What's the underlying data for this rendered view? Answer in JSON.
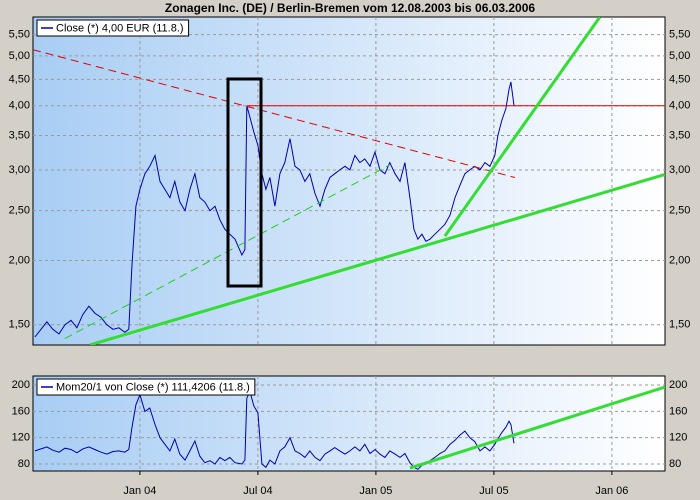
{
  "chart_data": [
    {
      "type": "line",
      "title": "Zonagen Inc. (DE) / Berlin-Bremen vom 12.08.2003 bis 06.03.2006",
      "x": [
        2003.555,
        2003.581,
        2003.606,
        2003.631,
        2003.657,
        2003.682,
        2003.708,
        2003.733,
        2003.758,
        2003.784,
        2003.809,
        2003.835,
        2003.86,
        2003.886,
        2003.911,
        2003.936,
        2003.953,
        2003.966,
        2003.983,
        2004.0,
        2004.021,
        2004.042,
        2004.064,
        2004.085,
        2004.106,
        2004.127,
        2004.148,
        2004.169,
        2004.191,
        2004.212,
        2004.233,
        2004.254,
        2004.275,
        2004.297,
        2004.318,
        2004.339,
        2004.36,
        2004.381,
        2004.403,
        2004.432,
        2004.445,
        2004.453,
        2004.466,
        2004.483,
        2004.5,
        2004.517,
        2004.534,
        2004.551,
        2004.572,
        2004.593,
        2004.614,
        2004.636,
        2004.657,
        2004.678,
        2004.699,
        2004.72,
        2004.742,
        2004.763,
        2004.784,
        2004.805,
        2004.826,
        2004.847,
        2004.869,
        2004.89,
        2004.911,
        2004.932,
        2004.953,
        2004.975,
        2004.996,
        2005.017,
        2005.038,
        2005.059,
        2005.081,
        2005.102,
        2005.123,
        2005.144,
        2005.161,
        2005.178,
        2005.195,
        2005.212,
        2005.229,
        2005.25,
        2005.271,
        2005.292,
        2005.314,
        2005.335,
        2005.356,
        2005.377,
        2005.398,
        2005.419,
        2005.441,
        2005.462,
        2005.483,
        2005.504,
        2005.517,
        2005.534,
        2005.551,
        2005.564,
        2005.572,
        2005.585
      ],
      "series": [
        {
          "name": "Close (*) 4,00 EUR (11.8.)",
          "color": "#0000b0",
          "values": [
            1.42,
            1.47,
            1.52,
            1.47,
            1.44,
            1.5,
            1.53,
            1.48,
            1.57,
            1.63,
            1.58,
            1.55,
            1.5,
            1.47,
            1.48,
            1.45,
            1.47,
            1.95,
            2.55,
            2.75,
            2.95,
            3.05,
            3.2,
            2.85,
            2.75,
            2.65,
            2.85,
            2.6,
            2.5,
            2.75,
            2.95,
            2.65,
            2.6,
            2.5,
            2.55,
            2.4,
            2.3,
            2.25,
            2.2,
            2.05,
            2.1,
            4.0,
            3.8,
            3.55,
            3.35,
            2.95,
            2.75,
            2.9,
            2.55,
            2.95,
            3.1,
            3.45,
            3.05,
            3.0,
            2.85,
            2.95,
            2.7,
            2.55,
            2.75,
            2.9,
            2.95,
            3.0,
            3.05,
            3.0,
            3.2,
            3.1,
            3.15,
            3.05,
            3.25,
            3.0,
            2.95,
            3.1,
            2.95,
            2.85,
            3.1,
            2.65,
            2.3,
            2.2,
            2.25,
            2.18,
            2.2,
            2.25,
            2.3,
            2.35,
            2.45,
            2.65,
            2.8,
            2.95,
            3.0,
            3.05,
            3.0,
            3.1,
            3.05,
            3.2,
            3.5,
            3.75,
            3.95,
            4.3,
            4.45,
            4.0
          ]
        }
      ],
      "xlim": [
        2003.547,
        2006.225
      ],
      "xticks": [
        2004,
        2004.5,
        2005,
        2005.5,
        2006
      ],
      "ylim": [
        1.37,
        5.95
      ],
      "log_scale": true,
      "grid": true,
      "yticks": [
        {
          "value": 1.5,
          "label": "1,50"
        },
        {
          "value": 2,
          "label": "2,00"
        },
        {
          "value": 2.5,
          "label": "2,50"
        },
        {
          "value": 3,
          "label": "3,00"
        },
        {
          "value": 3.5,
          "label": "3,50"
        },
        {
          "value": 4,
          "label": "4,00"
        },
        {
          "value": 4.5,
          "label": "4,50"
        },
        {
          "value": 5,
          "label": "5,00"
        },
        {
          "value": 5.5,
          "label": "5,50"
        }
      ],
      "trendlines": [
        {
          "color": "#dd0000",
          "dashed": true,
          "width": 1,
          "x": [
            2003.547,
            2005.589
          ],
          "values": [
            5.14,
            2.9
          ]
        },
        {
          "color": "#dd0000",
          "dashed": false,
          "width": 1,
          "x": [
            2004.453,
            2006.225
          ],
          "values": [
            4.0,
            4.0
          ]
        },
        {
          "color": "#22cc22",
          "dashed": true,
          "width": 1,
          "x": [
            2003.682,
            2005.059
          ],
          "values": [
            1.41,
            3.07
          ]
        },
        {
          "color": "#33dd33",
          "dashed": false,
          "width": 3,
          "x": [
            2003.788,
            2006.225
          ],
          "values": [
            1.37,
            2.94
          ]
        },
        {
          "color": "#33dd33",
          "dashed": false,
          "width": 3,
          "x": [
            2005.292,
            2005.949
          ],
          "values": [
            2.23,
            5.95
          ]
        }
      ]
    },
    {
      "type": "line",
      "x": [
        2003.555,
        2003.581,
        2003.606,
        2003.631,
        2003.657,
        2003.682,
        2003.708,
        2003.733,
        2003.758,
        2003.784,
        2003.809,
        2003.835,
        2003.86,
        2003.886,
        2003.911,
        2003.936,
        2003.953,
        2003.966,
        2003.983,
        2004.0,
        2004.021,
        2004.042,
        2004.064,
        2004.085,
        2004.106,
        2004.127,
        2004.148,
        2004.169,
        2004.191,
        2004.212,
        2004.233,
        2004.254,
        2004.275,
        2004.297,
        2004.318,
        2004.339,
        2004.36,
        2004.381,
        2004.403,
        2004.432,
        2004.445,
        2004.453,
        2004.466,
        2004.483,
        2004.5,
        2004.517,
        2004.534,
        2004.551,
        2004.572,
        2004.593,
        2004.614,
        2004.636,
        2004.657,
        2004.678,
        2004.699,
        2004.72,
        2004.742,
        2004.763,
        2004.784,
        2004.805,
        2004.826,
        2004.847,
        2004.869,
        2004.89,
        2004.911,
        2004.932,
        2004.953,
        2004.975,
        2004.996,
        2005.017,
        2005.038,
        2005.059,
        2005.081,
        2005.102,
        2005.123,
        2005.144,
        2005.161,
        2005.178,
        2005.195,
        2005.212,
        2005.229,
        2005.25,
        2005.271,
        2005.292,
        2005.314,
        2005.335,
        2005.356,
        2005.377,
        2005.398,
        2005.419,
        2005.441,
        2005.462,
        2005.483,
        2005.504,
        2005.517,
        2005.534,
        2005.551,
        2005.564,
        2005.572,
        2005.585
      ],
      "series": [
        {
          "name": "Mom20/1 von Close (*) 111,4206 (11.8.)",
          "color": "#0000b0",
          "values": [
            100,
            103,
            106,
            101,
            98,
            104,
            102,
            97,
            103,
            106,
            102,
            98,
            95,
            99,
            100,
            98,
            102,
            135,
            170,
            185,
            160,
            165,
            140,
            120,
            110,
            100,
            118,
            95,
            86,
            100,
            115,
            92,
            82,
            85,
            80,
            90,
            85,
            90,
            82,
            80,
            86,
            180,
            190,
            168,
            158,
            80,
            75,
            86,
            80,
            100,
            106,
            120,
            100,
            96,
            90,
            100,
            90,
            85,
            95,
            100,
            105,
            100,
            95,
            100,
            106,
            100,
            110,
            96,
            102,
            95,
            90,
            100,
            95,
            90,
            96,
            82,
            75,
            72,
            78,
            80,
            85,
            90,
            96,
            100,
            110,
            116,
            124,
            130,
            120,
            114,
            100,
            106,
            100,
            110,
            118,
            128,
            136,
            145,
            140,
            111.4
          ]
        }
      ],
      "xlim": [
        2003.547,
        2006.225
      ],
      "xticks": [
        {
          "value": 2004,
          "label": "Jan 04"
        },
        {
          "value": 2004.5,
          "label": "Jul 04"
        },
        {
          "value": 2005,
          "label": "Jan 05"
        },
        {
          "value": 2005.5,
          "label": "Jul 05"
        },
        {
          "value": 2006,
          "label": "Jan 06"
        }
      ],
      "ylim": [
        69.4,
        213.7
      ],
      "yticks": [
        80,
        120,
        160,
        200
      ],
      "log_scale": false,
      "grid": true,
      "trendlines": [
        {
          "color": "#33dd33",
          "dashed": false,
          "width": 3,
          "x": [
            2005.144,
            2006.225
          ],
          "values": [
            73.9,
            197
          ]
        }
      ]
    }
  ]
}
